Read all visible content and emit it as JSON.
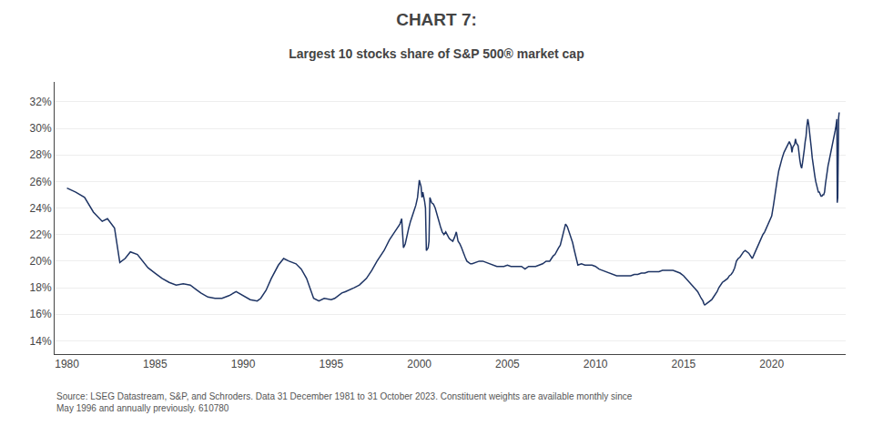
{
  "chart_data": {
    "type": "line",
    "title": "CHART 7:",
    "subtitle": "Largest 10 stocks share of S&P 500® market cap",
    "annotations": [
      "Source: LSEG Datastream, S&P, and Schroders. Data 31 December 1981 to 31 October 2023. Constituent weights are available monthly since\nMay 1996 and annually previously. 610780"
    ],
    "color": "#1e3464",
    "grid": true,
    "xlim": [
      1979.3,
      2024.2
    ],
    "ylim": [
      0.13,
      0.335
    ],
    "xticks": [
      1980,
      1985,
      1990,
      1995,
      2000,
      2005,
      2010,
      2015,
      2020
    ],
    "yticks": [
      {
        "value": 0.14,
        "label": "14%"
      },
      {
        "value": 0.16,
        "label": "16%"
      },
      {
        "value": 0.18,
        "label": "18%"
      },
      {
        "value": 0.2,
        "label": "20%"
      },
      {
        "value": 0.22,
        "label": "22%"
      },
      {
        "value": 0.24,
        "label": "24%"
      },
      {
        "value": 0.26,
        "label": "26%"
      },
      {
        "value": 0.28,
        "label": "28%"
      },
      {
        "value": 0.3,
        "label": "30%"
      },
      {
        "value": 0.32,
        "label": "32%"
      }
    ],
    "x": [
      1980.0,
      1980.5,
      1981.0,
      1981.5,
      1982.0,
      1982.3,
      1982.7,
      1983.0,
      1983.3,
      1983.6,
      1984.0,
      1984.3,
      1984.6,
      1985.0,
      1985.4,
      1985.8,
      1986.2,
      1986.6,
      1987.0,
      1987.3,
      1987.6,
      1988.0,
      1988.4,
      1988.8,
      1989.2,
      1989.6,
      1990.0,
      1990.4,
      1990.8,
      1991.0,
      1991.3,
      1991.6,
      1992.0,
      1992.3,
      1992.6,
      1993.0,
      1993.3,
      1993.6,
      1994.0,
      1994.3,
      1994.6,
      1995.0,
      1995.2,
      1995.4,
      1995.6,
      1995.8,
      1996.0,
      1996.3,
      1996.6,
      1997.0,
      1997.3,
      1997.6,
      1998.0,
      1998.3,
      1998.6,
      1998.9,
      1999.0,
      1999.1,
      1999.2,
      1999.3,
      1999.4,
      1999.5,
      1999.6,
      1999.7,
      1999.8,
      1999.9,
      2000.0,
      2000.1,
      2000.15,
      2000.2,
      2000.3,
      2000.35,
      2000.4,
      2000.5,
      2000.55,
      2000.6,
      2000.7,
      2000.8,
      2000.9,
      2001.0,
      2001.1,
      2001.2,
      2001.3,
      2001.4,
      2001.5,
      2001.6,
      2001.7,
      2001.8,
      2001.9,
      2002.0,
      2002.1,
      2002.2,
      2002.3,
      2002.4,
      2002.5,
      2002.6,
      2002.7,
      2002.8,
      2002.9,
      2003.0,
      2003.2,
      2003.4,
      2003.6,
      2003.8,
      2004.0,
      2004.2,
      2004.4,
      2004.6,
      2004.8,
      2005.0,
      2005.2,
      2005.4,
      2005.6,
      2005.8,
      2006.0,
      2006.2,
      2006.4,
      2006.6,
      2006.8,
      2007.0,
      2007.2,
      2007.4,
      2007.5,
      2007.6,
      2007.7,
      2007.8,
      2007.9,
      2008.0,
      2008.1,
      2008.2,
      2008.3,
      2008.4,
      2008.5,
      2008.6,
      2008.7,
      2008.8,
      2008.9,
      2009.0,
      2009.2,
      2009.4,
      2009.6,
      2009.8,
      2010.0,
      2010.2,
      2010.4,
      2010.6,
      2010.8,
      2011.0,
      2011.2,
      2011.4,
      2011.6,
      2011.8,
      2012.0,
      2012.2,
      2012.4,
      2012.6,
      2012.8,
      2013.0,
      2013.2,
      2013.4,
      2013.6,
      2013.8,
      2014.0,
      2014.2,
      2014.4,
      2014.6,
      2014.8,
      2015.0,
      2015.2,
      2015.4,
      2015.6,
      2015.8,
      2016.0,
      2016.1,
      2016.15,
      2016.2,
      2016.3,
      2016.4,
      2016.5,
      2016.6,
      2016.7,
      2016.8,
      2016.9,
      2017.0,
      2017.1,
      2017.2,
      2017.3,
      2017.4,
      2017.5,
      2017.6,
      2017.7,
      2017.8,
      2017.9,
      2018.0,
      2018.1,
      2018.2,
      2018.3,
      2018.4,
      2018.5,
      2018.6,
      2018.7,
      2018.8,
      2018.9,
      2019.0,
      2019.1,
      2019.2,
      2019.3,
      2019.4,
      2019.5,
      2019.6,
      2019.7,
      2019.8,
      2019.9,
      2020.0,
      2020.1,
      2020.2,
      2020.3,
      2020.4,
      2020.5,
      2020.6,
      2020.7,
      2020.8,
      2020.9,
      2021.0,
      2021.1,
      2021.15,
      2021.2,
      2021.3,
      2021.35,
      2021.4,
      2021.5,
      2021.55,
      2021.6,
      2021.65,
      2021.7,
      2021.75,
      2021.8,
      2021.85,
      2021.9,
      2021.95,
      2022.0,
      2022.05,
      2022.1,
      2022.15,
      2022.2,
      2022.25,
      2022.3,
      2022.35,
      2022.4,
      2022.45,
      2022.5,
      2022.55,
      2022.6,
      2022.65,
      2022.7,
      2022.75,
      2022.8,
      2022.85,
      2022.9,
      2022.95,
      2023.0,
      2023.05,
      2023.1,
      2023.15,
      2023.2,
      2023.25,
      2023.3,
      2023.35,
      2023.4,
      2023.45,
      2023.5,
      2023.55,
      2023.6,
      2023.65,
      2023.7,
      2023.72,
      2023.75,
      2023.8,
      2023.83
    ],
    "values": [
      0.255,
      0.252,
      0.248,
      0.237,
      0.23,
      0.232,
      0.225,
      0.199,
      0.202,
      0.207,
      0.205,
      0.2,
      0.195,
      0.191,
      0.187,
      0.184,
      0.182,
      0.183,
      0.182,
      0.179,
      0.176,
      0.173,
      0.172,
      0.172,
      0.174,
      0.177,
      0.174,
      0.171,
      0.17,
      0.172,
      0.178,
      0.187,
      0.197,
      0.202,
      0.2,
      0.198,
      0.194,
      0.187,
      0.172,
      0.17,
      0.172,
      0.171,
      0.172,
      0.174,
      0.176,
      0.177,
      0.178,
      0.18,
      0.182,
      0.187,
      0.193,
      0.2,
      0.208,
      0.216,
      0.222,
      0.228,
      0.232,
      0.21,
      0.213,
      0.22,
      0.225,
      0.23,
      0.235,
      0.238,
      0.242,
      0.248,
      0.261,
      0.256,
      0.248,
      0.252,
      0.245,
      0.24,
      0.208,
      0.21,
      0.215,
      0.248,
      0.244,
      0.243,
      0.24,
      0.235,
      0.23,
      0.226,
      0.222,
      0.22,
      0.222,
      0.219,
      0.217,
      0.216,
      0.215,
      0.218,
      0.222,
      0.215,
      0.213,
      0.21,
      0.206,
      0.203,
      0.2,
      0.199,
      0.198,
      0.198,
      0.199,
      0.2,
      0.2,
      0.199,
      0.198,
      0.197,
      0.196,
      0.196,
      0.196,
      0.197,
      0.196,
      0.196,
      0.196,
      0.196,
      0.194,
      0.196,
      0.196,
      0.196,
      0.197,
      0.198,
      0.2,
      0.2,
      0.202,
      0.204,
      0.205,
      0.208,
      0.21,
      0.212,
      0.218,
      0.222,
      0.228,
      0.226,
      0.222,
      0.219,
      0.214,
      0.208,
      0.203,
      0.197,
      0.198,
      0.197,
      0.197,
      0.197,
      0.196,
      0.194,
      0.193,
      0.192,
      0.191,
      0.19,
      0.189,
      0.189,
      0.189,
      0.189,
      0.189,
      0.19,
      0.19,
      0.191,
      0.191,
      0.192,
      0.192,
      0.192,
      0.192,
      0.193,
      0.193,
      0.193,
      0.193,
      0.192,
      0.191,
      0.189,
      0.186,
      0.183,
      0.18,
      0.177,
      0.172,
      0.17,
      0.168,
      0.167,
      0.168,
      0.169,
      0.17,
      0.171,
      0.173,
      0.175,
      0.177,
      0.18,
      0.182,
      0.184,
      0.185,
      0.186,
      0.187,
      0.189,
      0.19,
      0.192,
      0.195,
      0.2,
      0.202,
      0.203,
      0.205,
      0.207,
      0.208,
      0.207,
      0.206,
      0.204,
      0.202,
      0.205,
      0.208,
      0.212,
      0.215,
      0.218,
      0.22,
      0.222,
      0.225,
      0.228,
      0.231,
      0.234,
      0.242,
      0.252,
      0.26,
      0.268,
      0.274,
      0.278,
      0.282,
      0.285,
      0.288,
      0.29,
      0.287,
      0.282,
      0.286,
      0.288,
      0.292,
      0.289,
      0.287,
      0.28,
      0.276,
      0.272,
      0.27,
      0.274,
      0.278,
      0.284,
      0.29,
      0.294,
      0.302,
      0.307,
      0.303,
      0.298,
      0.292,
      0.285,
      0.278,
      0.272,
      0.268,
      0.264,
      0.26,
      0.257,
      0.255,
      0.252,
      0.252,
      0.25,
      0.249,
      0.249,
      0.25,
      0.25,
      0.252,
      0.258,
      0.264,
      0.268,
      0.272,
      0.275,
      0.278,
      0.282,
      0.285,
      0.287,
      0.29,
      0.294,
      0.298,
      0.302,
      0.307,
      0.244,
      0.248,
      0.308,
      0.312
    ]
  }
}
